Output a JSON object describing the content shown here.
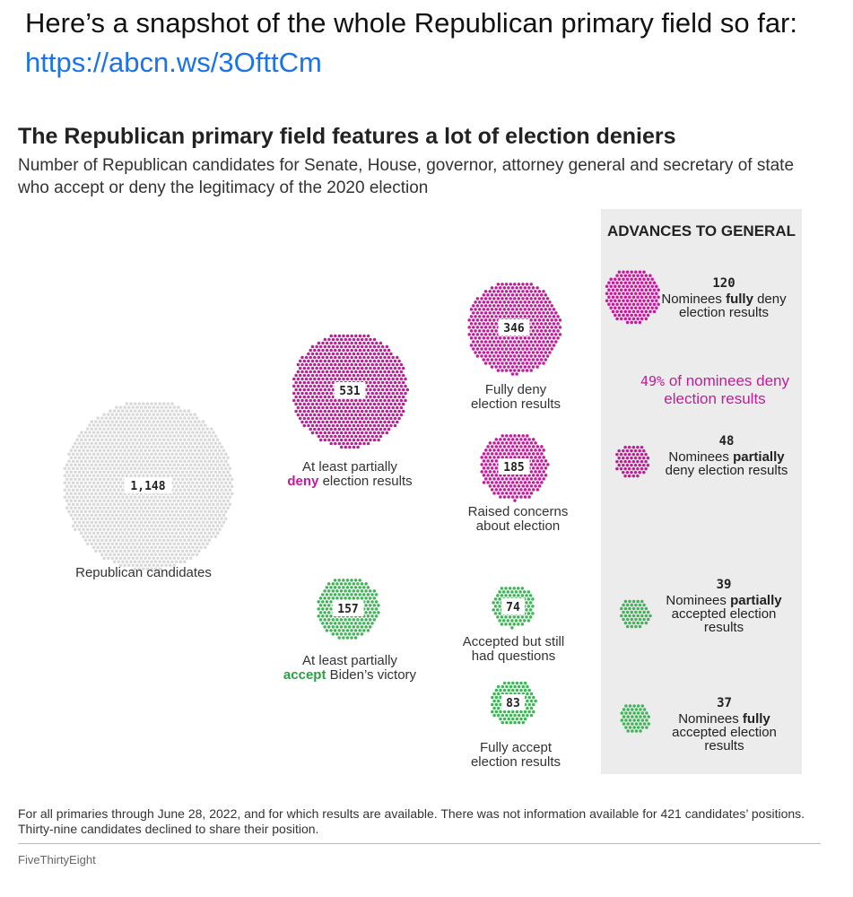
{
  "post": {
    "text": "Here’s a snapshot of the whole Republican primary field so far:",
    "link": "https://abcn.ws/3OfttCm"
  },
  "colors": {
    "deny": "#c21c9a",
    "accept": "#3fb557",
    "total": "#d9d9d9",
    "panel": "#ececec"
  },
  "chart_data": {
    "type": "bubble-cluster",
    "title": "The Republican primary field features a lot of election deniers",
    "subtitle": "Number of Republican candidates for Senate, House, governor, attorney general and secretary of state who accept or deny the legitimacy of the 2020 election",
    "clusters": [
      {
        "id": "total",
        "value": 1148,
        "label_text": "1,148",
        "category": "total",
        "caption": "Republican candidates"
      },
      {
        "id": "deny",
        "value": 531,
        "label_text": "531",
        "category": "deny",
        "caption_pre": "At least partially",
        "caption_em": "deny",
        "caption_post": "election results"
      },
      {
        "id": "accept",
        "value": 157,
        "label_text": "157",
        "category": "accept",
        "caption_pre": "At least partially",
        "caption_em": "accept",
        "caption_post": "Biden’s victory"
      },
      {
        "id": "fully_deny",
        "value": 346,
        "label_text": "346",
        "category": "deny",
        "caption": "Fully deny election results"
      },
      {
        "id": "raised",
        "value": 185,
        "label_text": "185",
        "category": "deny",
        "caption": "Raised concerns about election"
      },
      {
        "id": "accepted_q",
        "value": 74,
        "label_text": "74",
        "category": "accept",
        "caption": "Accepted but still had questions"
      },
      {
        "id": "fully_accept",
        "value": 83,
        "label_text": "83",
        "category": "accept",
        "caption": "Fully accept election results"
      }
    ],
    "advances_to_general": {
      "heading": "ADVANCES TO GENERAL",
      "share_pct": "49%",
      "share_text": "of nominees deny election results",
      "items": [
        {
          "id": "nom_fully_deny",
          "value": 120,
          "category": "deny",
          "pre": "Nominees",
          "bold": "fully",
          "post": "deny election results"
        },
        {
          "id": "nom_partial_deny",
          "value": 48,
          "category": "deny",
          "pre": "Nominees",
          "bold": "partially",
          "post": "deny election results"
        },
        {
          "id": "nom_partial_accept",
          "value": 39,
          "category": "accept",
          "pre": "Nominees",
          "bold": "partially",
          "post": "accepted election results"
        },
        {
          "id": "nom_fully_accept",
          "value": 37,
          "category": "accept",
          "pre": "Nominees",
          "bold": "fully",
          "post": "accepted election results"
        }
      ]
    }
  },
  "footnote": "For all primaries through June 28, 2022, and for which results are available. There was not information available for 421 candidates’ positions. Thirty-nine candidates declined to share their position.",
  "credit": "FiveThirtyEight"
}
